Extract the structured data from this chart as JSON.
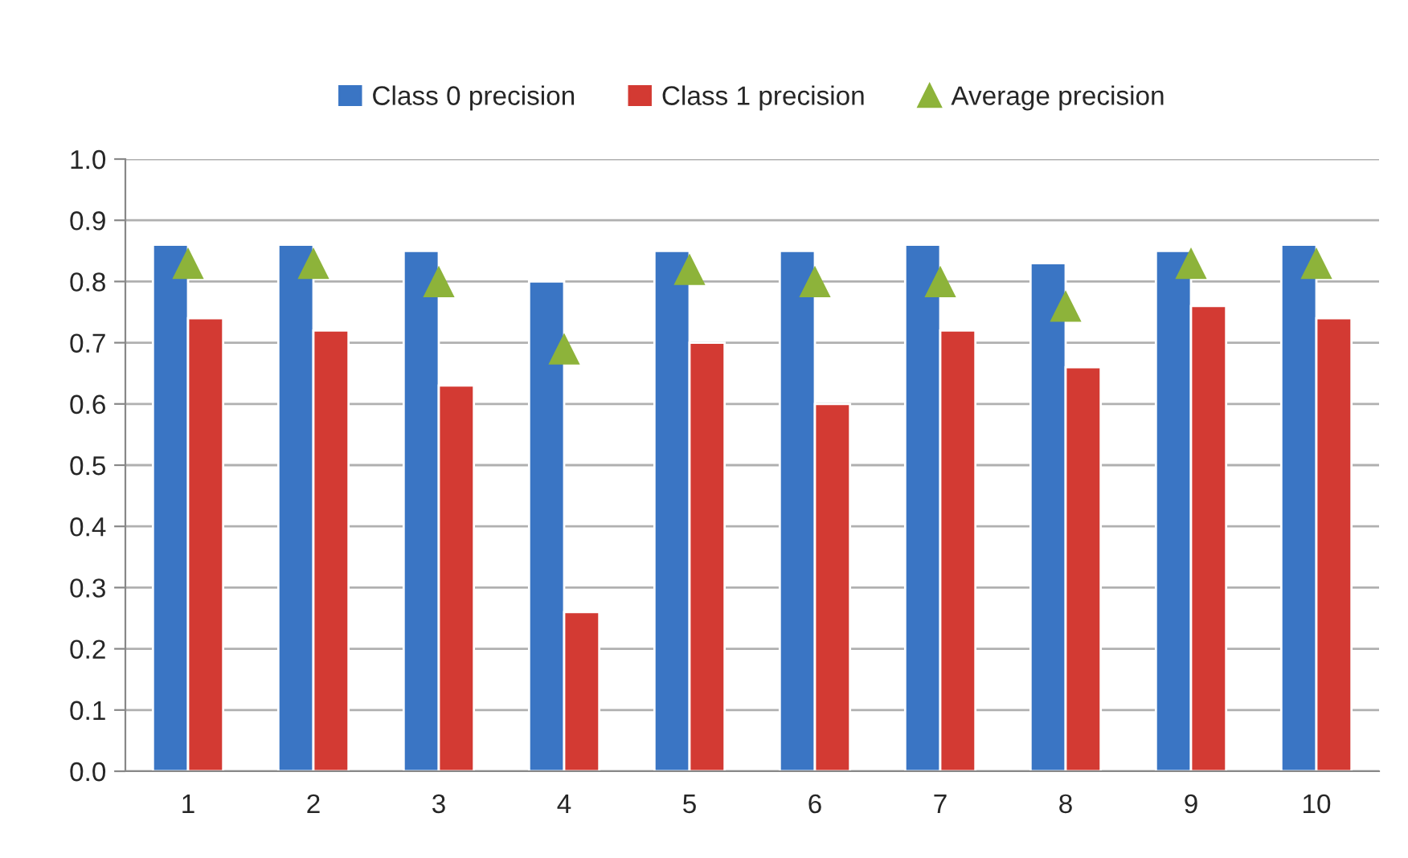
{
  "chart_data": {
    "type": "bar",
    "categories": [
      "1",
      "2",
      "3",
      "4",
      "5",
      "6",
      "7",
      "8",
      "9",
      "10"
    ],
    "series": [
      {
        "name": "Class 0 precision",
        "color": "#3a75c4",
        "values": [
          0.86,
          0.86,
          0.85,
          0.8,
          0.85,
          0.85,
          0.86,
          0.83,
          0.85,
          0.86
        ]
      },
      {
        "name": "Class 1 precision",
        "color": "#d33a33",
        "values": [
          0.74,
          0.72,
          0.63,
          0.26,
          0.7,
          0.6,
          0.72,
          0.66,
          0.76,
          0.74
        ]
      },
      {
        "name": "Average precision",
        "type": "scatter",
        "marker": "triangle",
        "color": "#8db33a",
        "values": [
          0.83,
          0.83,
          0.8,
          0.69,
          0.82,
          0.8,
          0.8,
          0.76,
          0.83,
          0.83
        ]
      }
    ],
    "ylim": [
      0,
      1.0
    ],
    "yticks": [
      "0.0",
      0.1,
      0.2,
      0.3,
      0.4,
      0.5,
      0.6,
      0.7,
      0.8,
      0.9,
      "1.0"
    ],
    "grid": "y",
    "legend": "top"
  }
}
